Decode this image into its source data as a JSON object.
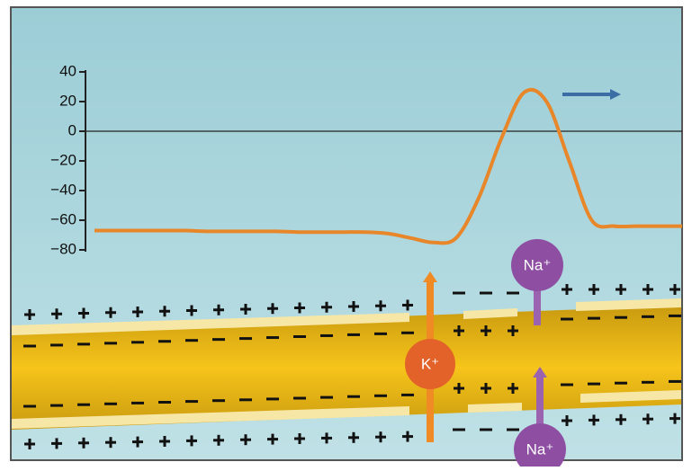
{
  "chart_data": {
    "type": "line",
    "categories": [
      null,
      null,
      null,
      null,
      null,
      null,
      null,
      null,
      null,
      null,
      null,
      null,
      null,
      null,
      null,
      null,
      null,
      null,
      null,
      null,
      null,
      null,
      null,
      null,
      null,
      null,
      null
    ],
    "values": [
      -67,
      -67,
      -67,
      -67,
      -67,
      -67.5,
      -67.5,
      -67.5,
      -67.5,
      -68,
      -68,
      -68,
      -68,
      -69,
      -72,
      -75,
      -72,
      -45,
      -5,
      26,
      20,
      -20,
      -60,
      -64,
      -64,
      -64,
      -64
    ],
    "color": "#e8862a",
    "ylim": [
      -80,
      40
    ],
    "yticks": [
      {
        "value": -80,
        "label": "−80"
      },
      {
        "value": -60,
        "label": "−60"
      },
      {
        "value": -40,
        "label": "−40"
      },
      {
        "value": -20,
        "label": "−20"
      },
      0,
      20,
      40
    ],
    "zero_line": true
  },
  "ions": [
    "K⁺",
    "Na⁺",
    "Na⁺"
  ]
}
